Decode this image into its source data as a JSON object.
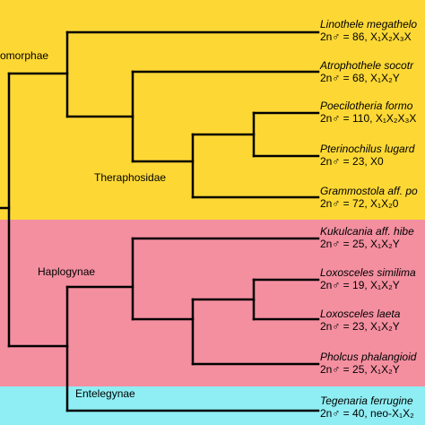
{
  "bands": {
    "yellow": "#fdd835",
    "pink": "#f48fa0",
    "cyan": "#8feef4"
  },
  "clades": {
    "mygalomorphae": "omorphae",
    "theraphosidae": "Theraphosidae",
    "haplogynae": "Haplogynae",
    "entelegynae": "Entelegynae"
  },
  "taxa": [
    {
      "name": "Linothele megathelo",
      "karyotype": "2n♂ = 86, X₁X₂X₃X"
    },
    {
      "name": "Atrophothele socotr",
      "karyotype": "2n♂ = 68, X₁X₂Y"
    },
    {
      "name": "Poecilotheria formo",
      "karyotype": "2n♂ = 110, X₁X₂X₃X"
    },
    {
      "name": "Pterinochilus lugard",
      "karyotype": "2n♂ = 23, X0"
    },
    {
      "name": "Grammostola aff. po",
      "karyotype": "2n♂ = 72, X₁X₂0"
    },
    {
      "name": "Kukulcania aff. hibe",
      "karyotype": "2n♂ = 25, X₁X₂Y"
    },
    {
      "name": "Loxosceles similima",
      "karyotype": "2n♂ = 19, X₁X₂Y"
    },
    {
      "name": "Loxosceles laeta",
      "karyotype": "2n♂ = 23, X₁X₂Y"
    },
    {
      "name": "Pholcus phalangioid",
      "karyotype": "2n♂ = 25, X₁X₂Y"
    },
    {
      "name": "Tegenaria ferrugine",
      "karyotype": "2n♂ = 40, neo-X₁X₂"
    }
  ]
}
